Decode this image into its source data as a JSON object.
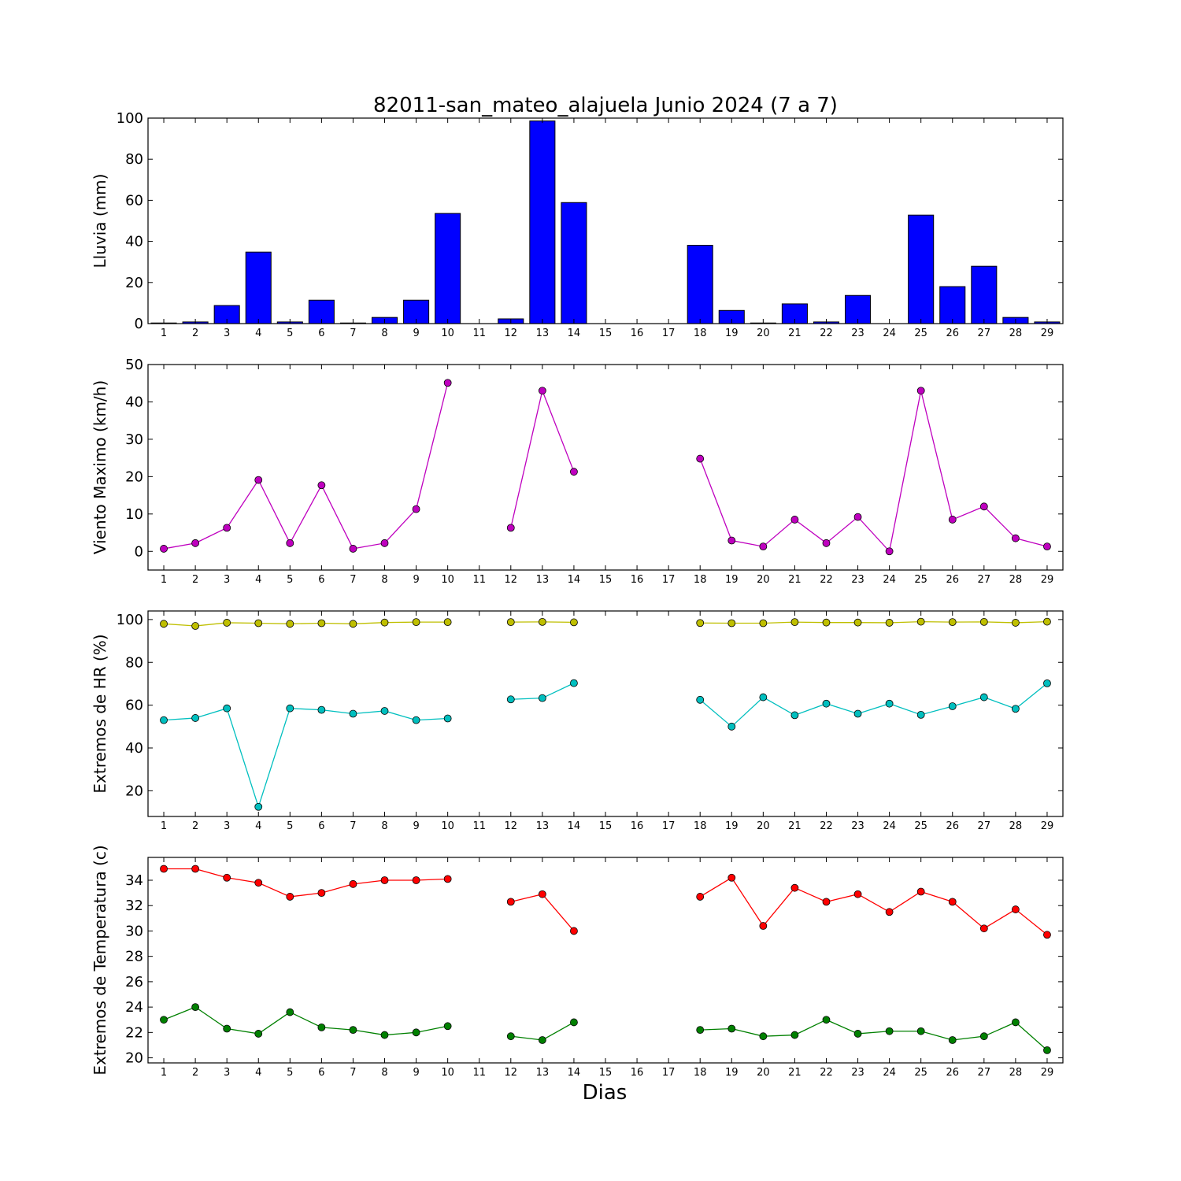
{
  "title": "82011-san_mateo_alajuela Junio 2024  (7 a 7)",
  "xlabel": "Dias",
  "chart_data": [
    {
      "type": "bar",
      "ylabel": "Lluvia (mm)",
      "ylim": [
        0,
        100
      ],
      "yticks": [
        0,
        20,
        40,
        60,
        80,
        100
      ],
      "categories": [
        1,
        2,
        3,
        4,
        5,
        6,
        7,
        8,
        9,
        10,
        11,
        12,
        13,
        14,
        15,
        16,
        17,
        18,
        19,
        20,
        21,
        22,
        23,
        24,
        25,
        26,
        27,
        28,
        29
      ],
      "series": [
        {
          "color": "#0000ff",
          "values": [
            0.3,
            0.8,
            8.8,
            34.8,
            0.8,
            11.4,
            0.3,
            3.0,
            11.4,
            53.6,
            0,
            2.3,
            98.6,
            58.9,
            0,
            0,
            0,
            38.1,
            6.4,
            0.3,
            9.6,
            0.8,
            13.7,
            0,
            52.8,
            18.0,
            27.9,
            3.0,
            0.8
          ]
        }
      ]
    },
    {
      "type": "line",
      "ylabel": "Viento Maximo (km/h)",
      "ylim": [
        -5,
        50
      ],
      "yticks": [
        0,
        10,
        20,
        30,
        40,
        50
      ],
      "x": [
        1,
        2,
        3,
        4,
        5,
        6,
        7,
        8,
        9,
        10,
        11,
        12,
        13,
        14,
        15,
        16,
        17,
        18,
        19,
        20,
        21,
        22,
        23,
        24,
        25,
        26,
        27,
        28,
        29
      ],
      "series": [
        {
          "color": "#bf00bf",
          "values": [
            0.7,
            2.2,
            6.3,
            19.1,
            2.2,
            17.7,
            0.7,
            2.2,
            11.3,
            45.1,
            null,
            6.3,
            43.0,
            21.3,
            null,
            null,
            null,
            24.8,
            2.9,
            1.3,
            8.5,
            2.2,
            9.2,
            0,
            43.0,
            8.5,
            12.0,
            3.5,
            1.3
          ]
        }
      ]
    },
    {
      "type": "line",
      "ylabel": "Extremos de HR (%)",
      "ylim": [
        8,
        104
      ],
      "yticks": [
        20,
        40,
        60,
        80,
        100
      ],
      "x": [
        1,
        2,
        3,
        4,
        5,
        6,
        7,
        8,
        9,
        10,
        11,
        12,
        13,
        14,
        15,
        16,
        17,
        18,
        19,
        20,
        21,
        22,
        23,
        24,
        25,
        26,
        27,
        28,
        29
      ],
      "series": [
        {
          "color": "#bfbf00",
          "values": [
            98,
            97,
            98.5,
            98.3,
            98,
            98.3,
            98,
            98.6,
            98.8,
            98.8,
            null,
            98.8,
            98.9,
            98.7,
            null,
            null,
            null,
            98.4,
            98.3,
            98.3,
            98.8,
            98.6,
            98.6,
            98.5,
            99,
            98.8,
            98.9,
            98.5,
            99
          ]
        },
        {
          "color": "#00bfbf",
          "values": [
            53,
            54,
            58.5,
            12.5,
            58.5,
            57.8,
            56,
            57.3,
            53,
            53.8,
            null,
            62.7,
            63.3,
            70.3,
            null,
            null,
            null,
            62.5,
            50,
            63.7,
            55.3,
            60.7,
            56,
            60.7,
            55.5,
            59.5,
            63.7,
            58.3,
            70.2
          ]
        }
      ]
    },
    {
      "type": "line",
      "ylabel": "Extremos de Temperatura (c)",
      "ylim": [
        19.6,
        35.8
      ],
      "yticks": [
        20,
        22,
        24,
        26,
        28,
        30,
        32,
        34
      ],
      "x": [
        1,
        2,
        3,
        4,
        5,
        6,
        7,
        8,
        9,
        10,
        11,
        12,
        13,
        14,
        15,
        16,
        17,
        18,
        19,
        20,
        21,
        22,
        23,
        24,
        25,
        26,
        27,
        28,
        29
      ],
      "series": [
        {
          "color": "#ff0000",
          "values": [
            34.9,
            34.9,
            34.2,
            33.8,
            32.7,
            33,
            33.7,
            34,
            34,
            34.1,
            null,
            32.3,
            32.9,
            30,
            null,
            null,
            null,
            32.7,
            34.2,
            30.4,
            33.4,
            32.3,
            32.9,
            31.5,
            33.1,
            32.3,
            30.2,
            31.7,
            29.7
          ]
        },
        {
          "color": "#008000",
          "values": [
            23,
            24,
            22.3,
            21.9,
            23.6,
            22.4,
            22.2,
            21.8,
            22,
            22.5,
            null,
            21.7,
            21.4,
            22.8,
            null,
            null,
            null,
            22.2,
            22.3,
            21.7,
            21.8,
            23,
            21.9,
            22.1,
            22.1,
            21.4,
            21.7,
            22.8,
            20.6
          ]
        }
      ]
    }
  ]
}
